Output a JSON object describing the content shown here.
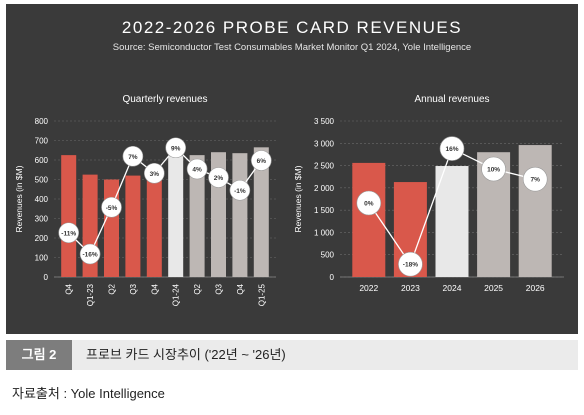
{
  "header": {
    "title": "2022-2026 PROBE CARD REVENUES",
    "subtitle": "Source: Semiconductor Test Consumables Market Monitor Q1 2024, Yole Intelligence"
  },
  "colors": {
    "panel_bg": "#3a3a3a",
    "red": "#d9584b",
    "light": "#e8e8e8",
    "gray": "#bdb7b4",
    "line": "#ffffff",
    "text": "#ffffff"
  },
  "chart_data": [
    {
      "type": "bar",
      "title": "Quarterly revenues",
      "ylabel": "Revenues (in $M)",
      "ylim": [
        0,
        800
      ],
      "yticks": [
        0,
        100,
        200,
        300,
        400,
        500,
        600,
        700,
        800
      ],
      "ytick_labels": [
        "0",
        "100",
        "200",
        "300",
        "400",
        "500",
        "600",
        "700",
        "800"
      ],
      "categories": [
        "Q4",
        "Q1-23",
        "Q2",
        "Q3",
        "Q4",
        "Q1-24",
        "Q2",
        "Q3",
        "Q4",
        "Q1-25"
      ],
      "values": [
        625,
        525,
        500,
        520,
        550,
        620,
        625,
        640,
        635,
        665
      ],
      "bar_colors": [
        "red",
        "red",
        "red",
        "red",
        "red",
        "light",
        "gray",
        "gray",
        "gray",
        "gray"
      ],
      "growth_line": {
        "values": [
          -11,
          -16,
          -5,
          7,
          3,
          9,
          4,
          2,
          -1,
          6
        ],
        "labels": [
          "-11%",
          "-16%",
          "-5%",
          "7%",
          "3%",
          "9%",
          "4%",
          "2%",
          "-1%",
          "6%"
        ],
        "ylim": [
          -20,
          12
        ]
      }
    },
    {
      "type": "bar",
      "title": "Annual revenues",
      "ylabel": "Revenues (in $M)",
      "ylim": [
        0,
        3500
      ],
      "yticks": [
        0,
        500,
        1000,
        1500,
        2000,
        2500,
        3000,
        3500
      ],
      "ytick_labels": [
        "0",
        "500",
        "1 000",
        "1 500",
        "2 000",
        "2 500",
        "3 000",
        "3 500"
      ],
      "categories": [
        "2022",
        "2023",
        "2024",
        "2025",
        "2026"
      ],
      "values": [
        2560,
        2130,
        2490,
        2800,
        2960
      ],
      "bar_colors": [
        "red",
        "red",
        "light",
        "gray",
        "gray"
      ],
      "growth_line": {
        "values": [
          0,
          -18,
          16,
          10,
          7
        ],
        "labels": [
          "0%",
          "-18%",
          "16%",
          "10%",
          "7%"
        ],
        "ylim": [
          -20,
          20
        ]
      }
    }
  ],
  "caption": {
    "figure_label": "그림 2",
    "text": "프로브 카드 시장추이 ('22년 ~ '26년)"
  },
  "source_note": "자료출처 : Yole Intelligence"
}
